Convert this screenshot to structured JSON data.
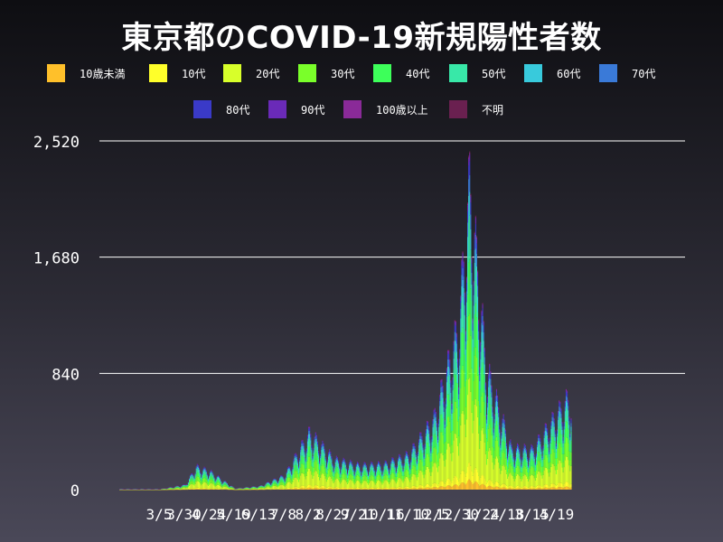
{
  "title": "東京都のCOVID-19新規陽性者数",
  "legend": [
    {
      "label": "10歳未満",
      "color": "#ffc02a"
    },
    {
      "label": "10代",
      "color": "#ffff2a"
    },
    {
      "label": "20代",
      "color": "#d8ff2a"
    },
    {
      "label": "30代",
      "color": "#7aff2a"
    },
    {
      "label": "40代",
      "color": "#3dff5a"
    },
    {
      "label": "50代",
      "color": "#38e8a8"
    },
    {
      "label": "60代",
      "color": "#38cadc"
    },
    {
      "label": "70代",
      "color": "#3a7ad8"
    },
    {
      "label": "80代",
      "color": "#3a3ac8"
    },
    {
      "label": "90代",
      "color": "#6a2ab8"
    },
    {
      "label": "100歳以上",
      "color": "#8a2a98"
    },
    {
      "label": "不明",
      "color": "#6a2050"
    }
  ],
  "chart_data": {
    "type": "bar",
    "stacked": true,
    "title": "東京都のCOVID-19新規陽性者数",
    "ylim": [
      0,
      2520
    ],
    "yticks": [
      0,
      840,
      1680,
      2520
    ],
    "ytick_labels": [
      "0",
      "840",
      "1,680",
      "2,520"
    ],
    "xtick_labels": [
      "3/5",
      "3/30",
      "4/24",
      "5/19",
      "6/13",
      "7/8",
      "8/2",
      "8/27",
      "9/21",
      "10/16",
      "11/10",
      "12/5",
      "12/30",
      "1/24",
      "2/18",
      "3/15",
      "4/19"
    ],
    "grid": "horizontal",
    "series_names": [
      "10歳未満",
      "10代",
      "20代",
      "30代",
      "40代",
      "50代",
      "60代",
      "70代",
      "80代",
      "90代",
      "100歳以上",
      "不明"
    ],
    "age_shares": [
      0.03,
      0.05,
      0.25,
      0.19,
      0.16,
      0.13,
      0.07,
      0.05,
      0.04,
      0.02,
      0.005,
      0.005
    ],
    "weekly_peak_totals": [
      {
        "date": "3/5",
        "total": 5
      },
      {
        "date": "3/30",
        "total": 40
      },
      {
        "date": "4/10",
        "total": 190
      },
      {
        "date": "4/24",
        "total": 150
      },
      {
        "date": "5/19",
        "total": 10
      },
      {
        "date": "6/13",
        "total": 30
      },
      {
        "date": "7/8",
        "total": 120
      },
      {
        "date": "8/2",
        "total": 470
      },
      {
        "date": "8/27",
        "total": 250
      },
      {
        "date": "9/21",
        "total": 200
      },
      {
        "date": "10/16",
        "total": 210
      },
      {
        "date": "11/10",
        "total": 290
      },
      {
        "date": "12/5",
        "total": 580
      },
      {
        "date": "12/30",
        "total": 1350
      },
      {
        "date": "1/7",
        "total": 2520
      },
      {
        "date": "1/24",
        "total": 990
      },
      {
        "date": "2/18",
        "total": 340
      },
      {
        "date": "3/15",
        "total": 330
      },
      {
        "date": "4/19",
        "total": 740
      }
    ]
  }
}
